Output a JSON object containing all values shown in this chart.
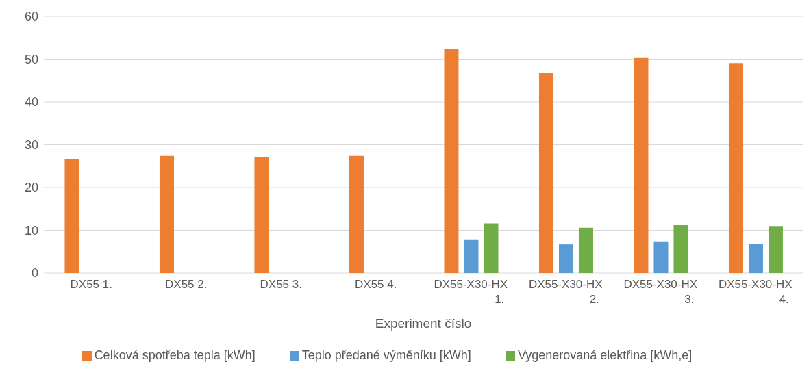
{
  "chart_data": {
    "type": "bar",
    "xlabel": "Experiment číslo",
    "categories": [
      "DX55 1.",
      "DX55 2.",
      "DX55 3.",
      "DX55 4.",
      "DX55-X30-HX 1.",
      "DX55-X30-HX 2.",
      "DX55-X30-HX 3.",
      "DX55-X30-HX 4."
    ],
    "series": [
      {
        "name": "Celková spotřeba tepla [kWh]",
        "color": "#ed7d31",
        "values": [
          26.6,
          27.4,
          27.2,
          27.4,
          52.4,
          46.8,
          50.3,
          49.1
        ]
      },
      {
        "name": "Teplo předané výměníku [kWh]",
        "color": "#5b9bd5",
        "values": [
          null,
          null,
          null,
          null,
          7.9,
          6.7,
          7.4,
          6.9
        ]
      },
      {
        "name": "Vygenerovaná elektřina [kWh,e]",
        "color": "#70ad47",
        "values": [
          null,
          null,
          null,
          null,
          11.6,
          10.6,
          11.2,
          11.0
        ]
      }
    ],
    "ylim": [
      0,
      60
    ],
    "yticks": [
      0,
      10,
      20,
      30,
      40,
      50,
      60
    ],
    "grid": "y",
    "legend": "bottom"
  }
}
